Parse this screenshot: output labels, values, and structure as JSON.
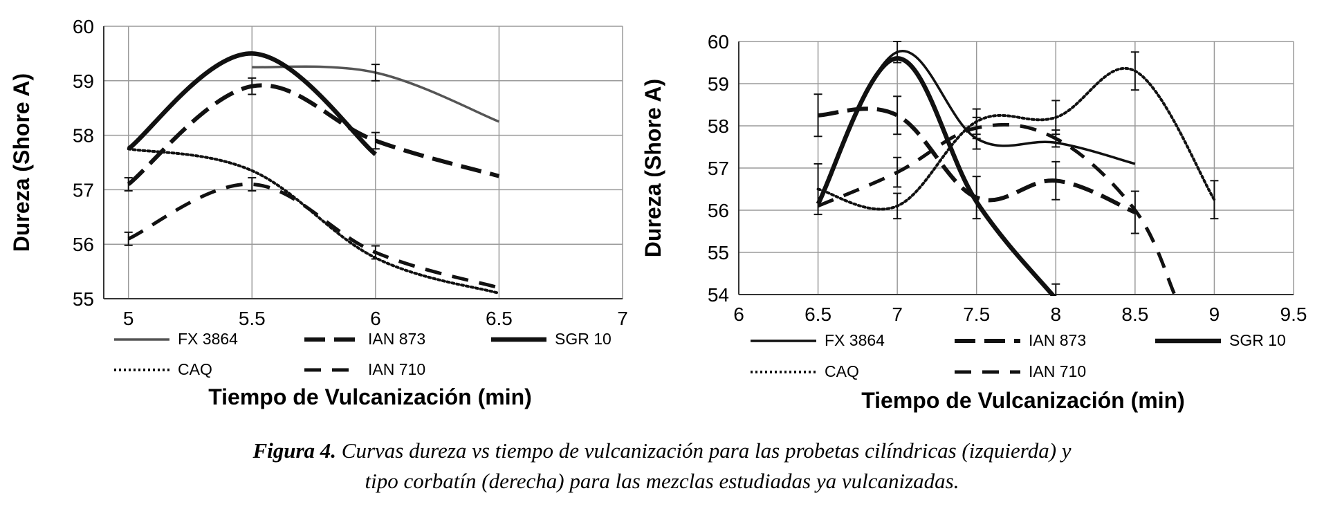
{
  "chart_data": [
    {
      "type": "line",
      "panel": "left",
      "xlabel": "Tiempo de Vulcanización (min)",
      "ylabel": "Dureza (Shore A)",
      "xlim": [
        4.9,
        7
      ],
      "ylim": [
        55,
        60
      ],
      "xticks": [
        "5",
        "5.5",
        "6",
        "6.5",
        "7"
      ],
      "xtick_values": [
        5,
        5.5,
        6,
        6.5,
        7
      ],
      "yticks": [
        "55",
        "56",
        "57",
        "58",
        "59",
        "60"
      ],
      "ytick_values": [
        55,
        56,
        57,
        58,
        59,
        60
      ],
      "series": [
        {
          "name": "FX 3864",
          "x": [
            5.5,
            6,
            6.5
          ],
          "values": [
            59.25,
            59.15,
            58.25
          ],
          "errors": [
            0,
            0.15,
            0
          ],
          "color": "#555555"
        },
        {
          "name": "IAN 873",
          "x": [
            5,
            5.5,
            6,
            6.5
          ],
          "values": [
            57.1,
            58.9,
            57.9,
            57.25
          ],
          "errors": [
            0.12,
            0.15,
            0.15,
            0
          ],
          "color": "#111111"
        },
        {
          "name": "SGR 10",
          "x": [
            5,
            5.5,
            6
          ],
          "values": [
            57.75,
            59.5,
            57.65
          ],
          "errors": [
            0,
            0,
            0
          ],
          "color": "#111111"
        },
        {
          "name": "CAQ",
          "x": [
            5,
            5.5,
            6,
            6.5
          ],
          "values": [
            57.75,
            57.35,
            55.75,
            55.1
          ],
          "errors": [
            0,
            0,
            0,
            0
          ],
          "color": "#111111"
        },
        {
          "name": "IAN 710",
          "x": [
            5,
            5.5,
            6,
            6.5
          ],
          "values": [
            56.1,
            57.1,
            55.85,
            55.2
          ],
          "errors": [
            0.12,
            0.12,
            0.12,
            0
          ],
          "color": "#111111"
        }
      ]
    },
    {
      "type": "line",
      "panel": "right",
      "xlabel": "Tiempo de Vulcanización (min)",
      "ylabel": "Dureza (Shore A)",
      "xlim": [
        6,
        9.5
      ],
      "ylim": [
        54,
        60
      ],
      "xticks": [
        "6",
        "6.5",
        "7",
        "7.5",
        "8",
        "8.5",
        "9",
        "9.5"
      ],
      "xtick_values": [
        6,
        6.5,
        7,
        7.5,
        8,
        8.5,
        9,
        9.5
      ],
      "yticks": [
        "54",
        "55",
        "56",
        "57",
        "58",
        "59",
        "60"
      ],
      "ytick_values": [
        54,
        55,
        56,
        57,
        58,
        59,
        60
      ],
      "series": [
        {
          "name": "FX 3864",
          "x": [
            6.5,
            7,
            7.5,
            8,
            8.5
          ],
          "values": [
            56.2,
            59.75,
            57.7,
            57.6,
            57.1
          ],
          "errors": [
            0,
            0.25,
            0.25,
            0,
            0
          ],
          "color": "#111111"
        },
        {
          "name": "IAN 873",
          "x": [
            6.5,
            7,
            7.5,
            8,
            8.5
          ],
          "values": [
            58.25,
            58.25,
            56.3,
            56.7,
            55.95
          ],
          "errors": [
            0.5,
            0.45,
            0.5,
            0.45,
            0.5
          ],
          "color": "#111111"
        },
        {
          "name": "SGR 10",
          "x": [
            6.5,
            7,
            7.5,
            8
          ],
          "values": [
            56.15,
            59.6,
            56.2,
            53.9
          ],
          "errors": [
            0,
            0,
            0,
            0.35
          ],
          "color": "#111111"
        },
        {
          "name": "CAQ",
          "x": [
            6.5,
            7,
            7.5,
            8,
            8.5,
            9
          ],
          "values": [
            56.5,
            56.1,
            58.1,
            58.2,
            59.3,
            56.25
          ],
          "errors": [
            0.6,
            0.3,
            0.3,
            0.4,
            0.45,
            0.45
          ],
          "color": "#111111"
        },
        {
          "name": "IAN 710",
          "x": [
            6.5,
            7,
            7.5,
            8,
            8.5,
            8.75
          ],
          "values": [
            56.1,
            56.9,
            57.95,
            57.7,
            56.0,
            54.0
          ],
          "errors": [
            0,
            0.35,
            0.25,
            0.2,
            0,
            0
          ],
          "color": "#111111"
        }
      ]
    }
  ],
  "caption": {
    "label": "Figura 4.",
    "line1": " Curvas dureza vs tiempo de vulcanización para las probetas cilíndricas (izquierda) y",
    "line2": "tipo corbatín (derecha) para las mezclas estudiadas ya vulcanizadas."
  }
}
